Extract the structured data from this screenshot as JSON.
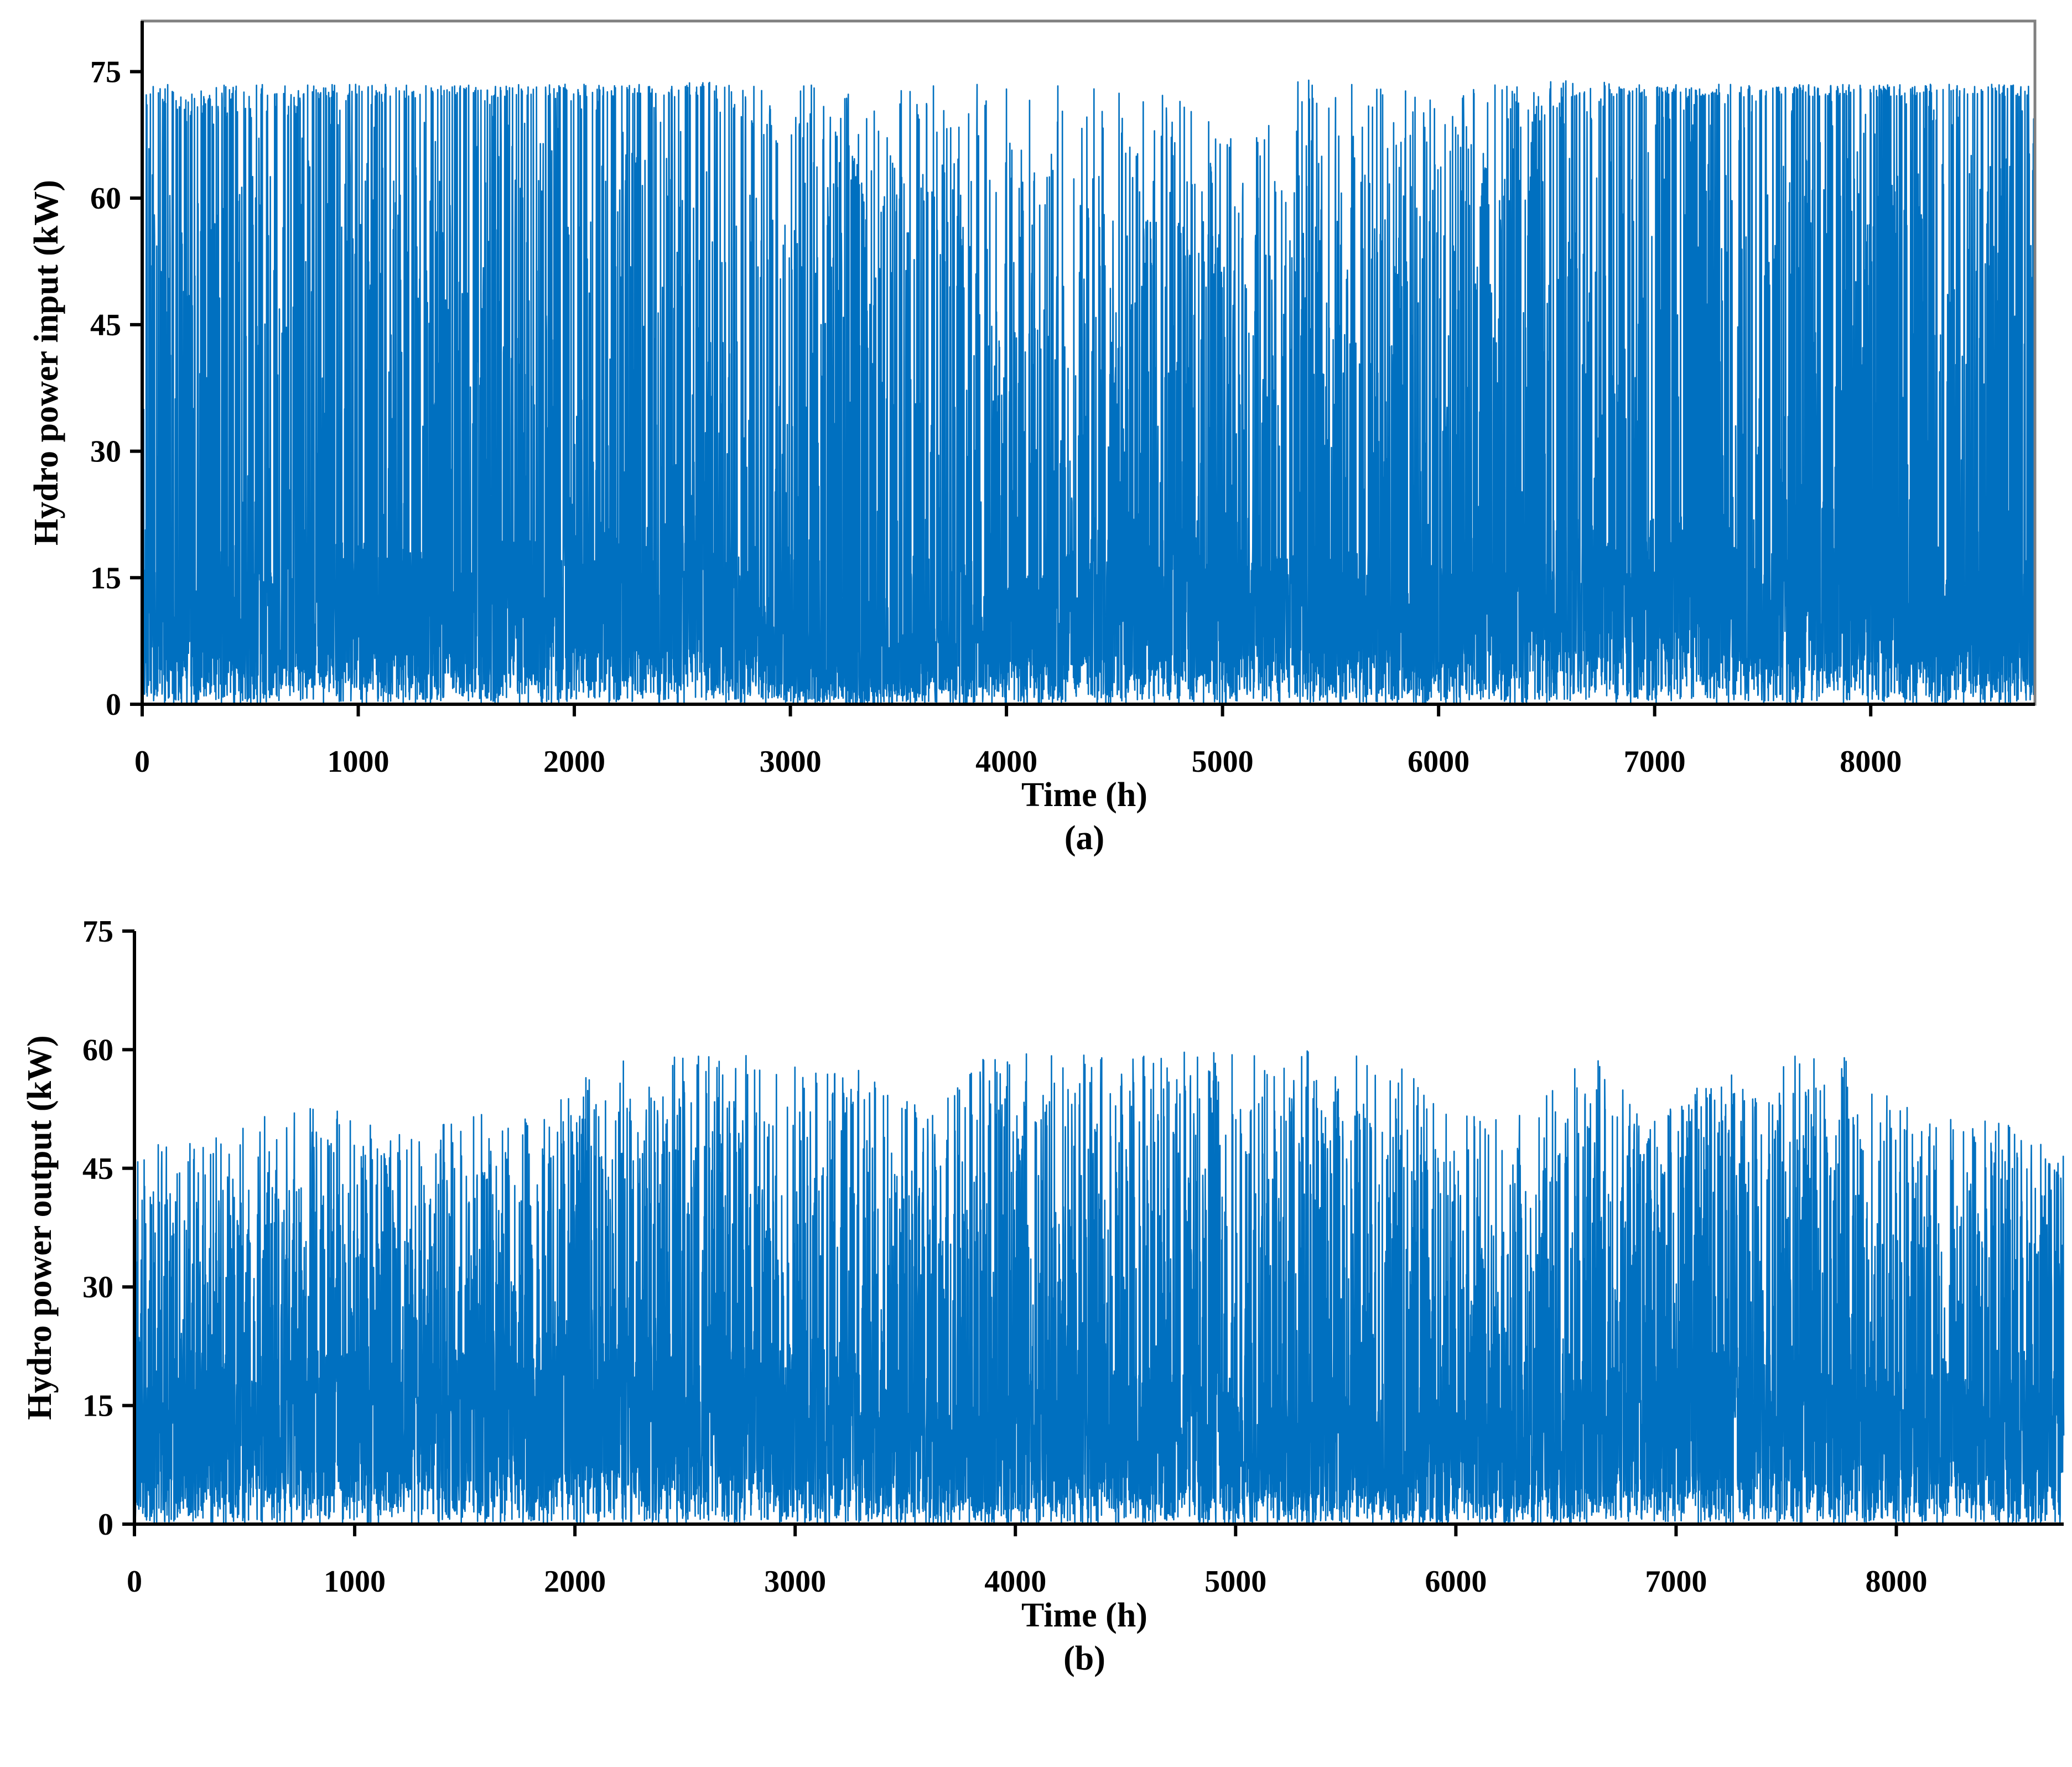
{
  "series_color": "#0070C0",
  "chart_data": [
    {
      "type": "line",
      "panel_label": "(a)",
      "xlabel": "Time (h)",
      "ylabel": "Hydro power input (kW)",
      "xlim": [
        0,
        8760
      ],
      "ylim": [
        0,
        81
      ],
      "xticks": [
        0,
        1000,
        2000,
        3000,
        4000,
        5000,
        6000,
        7000,
        8000
      ],
      "yticks": [
        0,
        15,
        30,
        45,
        60,
        75
      ],
      "frame": "box",
      "grid": false,
      "legend": "none",
      "series": [
        {
          "x_step": 1,
          "envelope": {
            "x": [
              0,
              300,
              600,
              900,
              1200,
              1500,
              1800,
              2100,
              2400,
              2700,
              3000,
              3300,
              3600,
              3900,
              4200,
              4500,
              4800,
              5100,
              5400,
              5700,
              6000,
              6300,
              6600,
              6900,
              7200,
              7500,
              7800,
              8100,
              8400,
              8760
            ],
            "max": [
              73.5,
              73.5,
              73.5,
              73.5,
              73.5,
              73.5,
              73.5,
              73.5,
              73.5,
              74.0,
              73.5,
              73.5,
              73.5,
              73.5,
              73.5,
              73.5,
              73.5,
              73.5,
              74.0,
              73.5,
              73.5,
              73.5,
              74.0,
              73.5,
              73.5,
              73.5,
              73.5,
              73.5,
              73.5,
              73.5
            ],
            "typical_peak": [
              70,
              70,
              70,
              72,
              72,
              72,
              72,
              72,
              72,
              72,
              60,
              62,
              55,
              45,
              45,
              55,
              55,
              50,
              55,
              55,
              50,
              62,
              72,
              72,
              72,
              72,
              72,
              72,
              72,
              72
            ],
            "base": [
              10,
              12,
              10,
              12,
              12,
              12,
              12,
              14,
              14,
              12,
              6,
              4,
              6,
              8,
              10,
              14,
              14,
              12,
              12,
              12,
              10,
              12,
              14,
              14,
              14,
              12,
              12,
              12,
              12,
              10
            ],
            "min": [
              0,
              0,
              0,
              0,
              0,
              0,
              0,
              0,
              0,
              0,
              0,
              0,
              0,
              0,
              0,
              0,
              0,
              0,
              0,
              0,
              0,
              0,
              0,
              0,
              0,
              0,
              0,
              0,
              0,
              0
            ]
          }
        }
      ]
    },
    {
      "type": "line",
      "panel_label": "(b)",
      "xlabel": "Time (h)",
      "ylabel": "Hydro power output (kW)",
      "xlim": [
        0,
        8760
      ],
      "ylim": [
        0,
        75
      ],
      "xticks": [
        0,
        1000,
        2000,
        3000,
        4000,
        5000,
        6000,
        7000,
        8000
      ],
      "yticks": [
        0,
        15,
        30,
        45,
        60,
        75
      ],
      "frame": "axes",
      "grid": false,
      "legend": "none",
      "series": [
        {
          "x_step": 1,
          "envelope": {
            "x": [
              0,
              300,
              600,
              900,
              1200,
              1500,
              1800,
              2100,
              2400,
              2700,
              3000,
              3300,
              3600,
              3900,
              4200,
              4500,
              4800,
              5100,
              5400,
              5700,
              6000,
              6300,
              6600,
              6900,
              7200,
              7500,
              7800,
              8100,
              8400,
              8760
            ],
            "max": [
              48,
              50,
              52,
              53,
              50,
              52,
              52,
              58,
              60,
              60,
              58,
              58,
              52,
              60,
              60,
              59,
              60,
              60,
              60,
              59,
              52,
              52,
              60,
              52,
              57,
              60,
              59,
              52,
              52,
              47
            ],
            "typical_peak": [
              36,
              40,
              40,
              42,
              42,
              42,
              42,
              45,
              48,
              48,
              46,
              45,
              42,
              48,
              45,
              48,
              48,
              45,
              45,
              45,
              38,
              40,
              45,
              45,
              46,
              48,
              48,
              45,
              42,
              40
            ],
            "base": [
              12,
              14,
              14,
              14,
              14,
              14,
              15,
              16,
              16,
              16,
              14,
              12,
              10,
              10,
              12,
              12,
              12,
              10,
              10,
              10,
              10,
              10,
              12,
              14,
              14,
              14,
              14,
              12,
              12,
              12
            ],
            "min": [
              0,
              0,
              0,
              0,
              0,
              0,
              0,
              0,
              0,
              0,
              0,
              0,
              0,
              0,
              0,
              0,
              0,
              0,
              0,
              0,
              0,
              0,
              0,
              0,
              0,
              0,
              0,
              0,
              0,
              0
            ]
          }
        }
      ]
    }
  ]
}
